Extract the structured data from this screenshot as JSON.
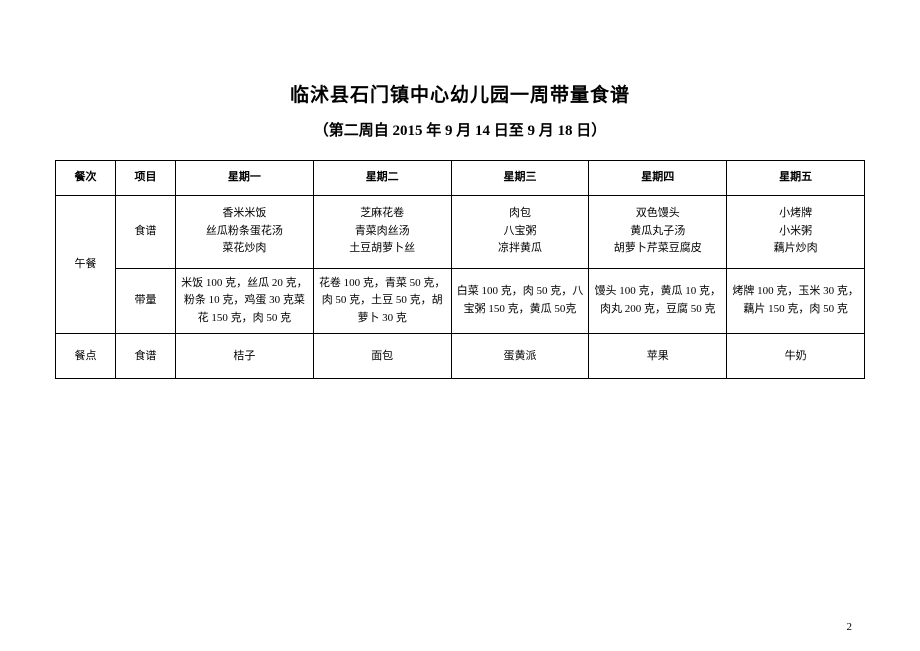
{
  "title": "临沭县石门镇中心幼儿园一周带量食谱",
  "subtitle": "（第二周自 2015 年 9 月 14 日至 9 月 18 日）",
  "page_number": "2",
  "headers": {
    "meal": "餐次",
    "item": "项目",
    "mon": "星期一",
    "tue": "星期二",
    "wed": "星期三",
    "thu": "星期四",
    "fri": "星期五"
  },
  "lunch": {
    "label": "午餐",
    "recipe_label": "食谱",
    "amount_label": "带量",
    "recipe": {
      "mon": "香米米饭\n丝瓜粉条蛋花汤\n菜花炒肉",
      "tue": "芝麻花卷\n青菜肉丝汤\n土豆胡萝卜丝",
      "wed": "肉包\n八宝粥\n凉拌黄瓜",
      "thu": "双色馒头\n黄瓜丸子汤\n胡萝卜芹菜豆腐皮",
      "fri": "小烤牌\n小米粥\n藕片炒肉"
    },
    "amount": {
      "mon": "米饭 100 克，丝瓜 20 克，粉条 10 克，鸡蛋 30 克菜花 150 克，肉 50 克",
      "tue": "花卷 100 克，青菜 50 克，肉 50 克，土豆 50 克，胡萝卜 30 克",
      "wed": "白菜 100 克，肉 50 克，八宝粥 150 克，黄瓜 50克",
      "thu": "馒头 100 克，黄瓜 10 克，肉丸 200 克，豆腐 50 克",
      "fri": "烤牌 100 克，玉米 30 克，藕片 150 克，肉 50 克"
    }
  },
  "snack": {
    "meal_label": "餐点",
    "item_label": "食谱",
    "mon": "桔子",
    "tue": "面包",
    "wed": "蛋黄派",
    "thu": "苹果",
    "fri": "牛奶"
  }
}
